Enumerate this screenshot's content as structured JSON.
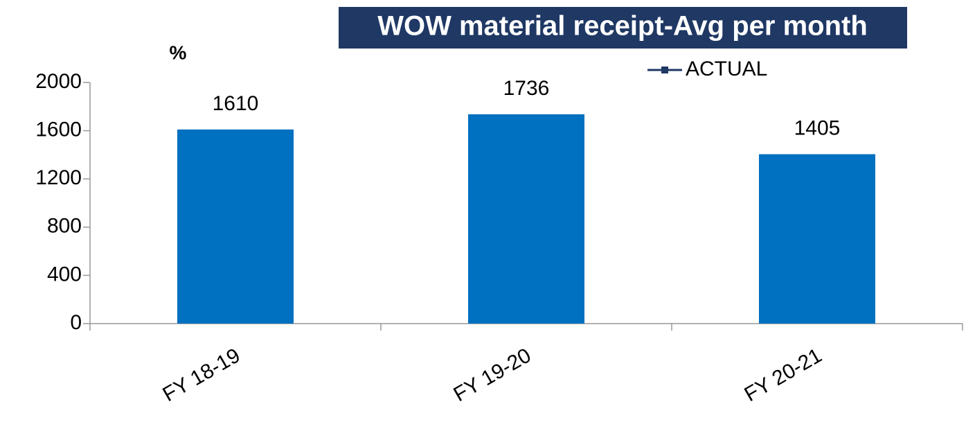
{
  "chart_data": {
    "type": "bar",
    "title": "WOW material receipt-Avg per month",
    "y_label": "%",
    "categories": [
      "FY 18-19",
      "FY 19-20",
      "FY 20-21"
    ],
    "series": [
      {
        "name": "ACTUAL",
        "color": "#0070c0",
        "values": [
          1610,
          1736,
          1405
        ]
      }
    ],
    "legend_color": "#1f3864",
    "title_background": "#1f3864",
    "ylim": [
      0,
      2000
    ],
    "yticks": [
      0,
      400,
      800,
      1200,
      1600,
      2000
    ],
    "grid": false
  }
}
